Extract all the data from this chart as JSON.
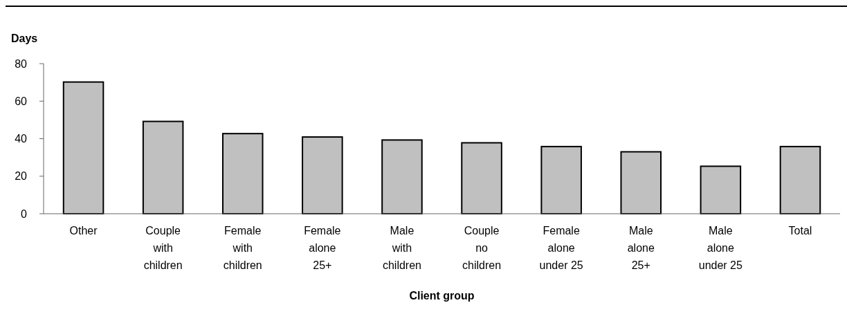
{
  "chart_data": {
    "type": "bar",
    "ylabel": "Days",
    "xlabel": "Client group",
    "categories": [
      "Other",
      "Couple\nwith\nchildren",
      "Female\nwith\nchildren",
      "Female\nalone\n25+",
      "Male\nwith\nchildren",
      "Couple\nno\nchildren",
      "Female\nalone\nunder 25",
      "Male\nalone\n25+",
      "Male\nalone\nunder 25",
      "Total"
    ],
    "values": [
      70.2,
      49.2,
      42.7,
      40.9,
      39.3,
      37.8,
      35.8,
      33,
      25.3,
      35.8
    ],
    "color": "#c0c0c0",
    "ylim": [
      0,
      80
    ],
    "yticks": [
      0,
      20,
      40,
      60,
      80
    ],
    "grid": false
  }
}
